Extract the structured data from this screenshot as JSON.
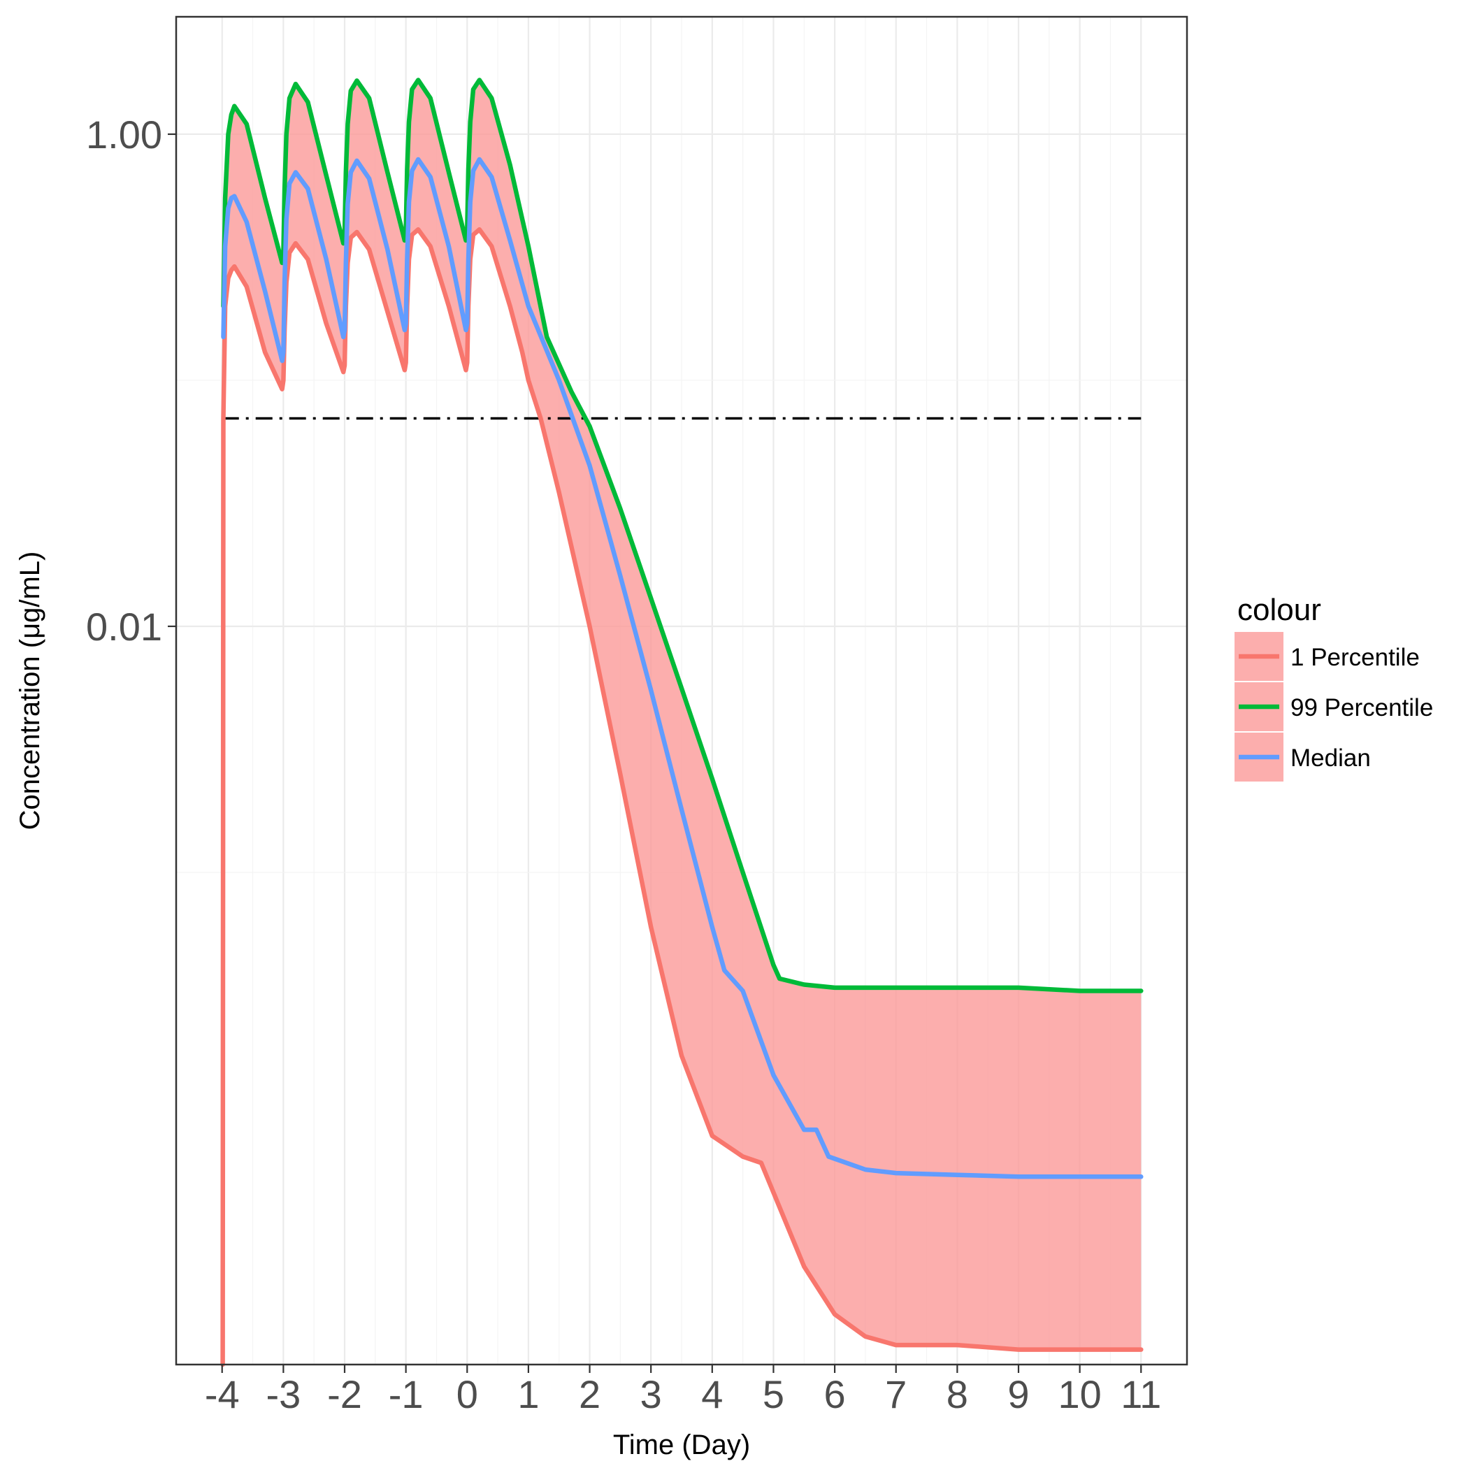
{
  "chart_data": {
    "type": "line",
    "title": "",
    "xlabel": "Time (Day)",
    "ylabel": "Concentration (μg/mL)",
    "x_ticks": [
      -4,
      -3,
      -2,
      -1,
      0,
      1,
      2,
      3,
      4,
      5,
      6,
      7,
      8,
      9,
      10,
      11
    ],
    "x_tick_labels": [
      "-4",
      "-3",
      "-2",
      "-1",
      "0",
      "1",
      "2",
      "3",
      "4",
      "5",
      "6",
      "7",
      "8",
      "9",
      "10",
      "11"
    ],
    "xlim": [
      -4.75,
      11.75
    ],
    "y_scale": "log10",
    "y_ticks": [
      1.0,
      0.01
    ],
    "y_tick_labels": [
      "1.00",
      "0.01"
    ],
    "ylim": [
      1e-05,
      3.0
    ],
    "grid": true,
    "legend": {
      "title": "colour",
      "position": "right",
      "entries": [
        "1 Percentile",
        "99 Percentile",
        "Median"
      ]
    },
    "reference_line": {
      "y": 0.07,
      "style": "dash-dot",
      "x_from": -4,
      "x_to": 11
    },
    "ribbon": {
      "fill": "#fb9a99",
      "opacity": 0.8,
      "between": [
        "1 Percentile",
        "99 Percentile"
      ]
    },
    "series": [
      {
        "name": "1 Percentile",
        "color": "#f8766d",
        "x": [
          -3.99,
          -3.98,
          -3.95,
          -3.9,
          -3.85,
          -3.8,
          -3.6,
          -3.3,
          -3.02,
          -3.0,
          -2.98,
          -2.95,
          -2.9,
          -2.8,
          -2.6,
          -2.3,
          -2.02,
          -2.0,
          -1.98,
          -1.95,
          -1.9,
          -1.8,
          -1.6,
          -1.3,
          -1.02,
          -1.0,
          -0.98,
          -0.95,
          -0.9,
          -0.8,
          -0.6,
          -0.3,
          -0.02,
          0.0,
          0.02,
          0.05,
          0.1,
          0.2,
          0.4,
          0.7,
          0.9,
          1.0,
          1.2,
          1.5,
          2.0,
          2.5,
          3.0,
          3.5,
          4.0,
          4.5,
          4.8,
          5.0,
          5.5,
          6.0,
          6.5,
          7.0,
          8.0,
          9.0,
          10.0,
          11.0
        ],
        "values": [
          1e-05,
          0.07,
          0.2,
          0.26,
          0.28,
          0.29,
          0.24,
          0.13,
          0.092,
          0.1,
          0.16,
          0.25,
          0.33,
          0.36,
          0.31,
          0.17,
          0.108,
          0.115,
          0.2,
          0.3,
          0.38,
          0.4,
          0.34,
          0.19,
          0.11,
          0.118,
          0.2,
          0.31,
          0.39,
          0.41,
          0.35,
          0.2,
          0.11,
          0.118,
          0.2,
          0.31,
          0.39,
          0.41,
          0.35,
          0.2,
          0.13,
          0.1,
          0.07,
          0.035,
          0.01,
          0.0025,
          0.0006,
          0.00018,
          8.5e-05,
          7e-05,
          6.6e-05,
          5e-05,
          2.5e-05,
          1.6e-05,
          1.3e-05,
          1.2e-05,
          1.2e-05,
          1.15e-05,
          1.15e-05,
          1.15e-05
        ]
      },
      {
        "name": "99 Percentile",
        "color": "#00ba38",
        "x": [
          -3.98,
          -3.95,
          -3.9,
          -3.85,
          -3.8,
          -3.6,
          -3.3,
          -3.02,
          -3.0,
          -2.98,
          -2.95,
          -2.9,
          -2.8,
          -2.6,
          -2.3,
          -2.02,
          -2.0,
          -1.98,
          -1.95,
          -1.9,
          -1.8,
          -1.6,
          -1.3,
          -1.02,
          -1.0,
          -0.98,
          -0.95,
          -0.9,
          -0.8,
          -0.6,
          -0.3,
          -0.02,
          0.0,
          0.02,
          0.05,
          0.1,
          0.2,
          0.4,
          0.7,
          1.0,
          1.3,
          1.7,
          2.0,
          2.5,
          3.0,
          3.5,
          4.0,
          4.5,
          5.0,
          5.1,
          5.5,
          6.0,
          7.0,
          8.0,
          9.0,
          10.0,
          11.0
        ],
        "values": [
          0.2,
          0.55,
          1.0,
          1.2,
          1.3,
          1.1,
          0.55,
          0.3,
          0.33,
          0.6,
          1.0,
          1.4,
          1.6,
          1.35,
          0.68,
          0.36,
          0.4,
          0.7,
          1.1,
          1.5,
          1.65,
          1.4,
          0.7,
          0.37,
          0.41,
          0.72,
          1.12,
          1.52,
          1.66,
          1.4,
          0.7,
          0.37,
          0.41,
          0.72,
          1.12,
          1.52,
          1.66,
          1.4,
          0.75,
          0.35,
          0.15,
          0.09,
          0.065,
          0.03,
          0.013,
          0.0056,
          0.0024,
          0.001,
          0.00042,
          0.00037,
          0.00035,
          0.00034,
          0.00034,
          0.00034,
          0.00034,
          0.00033,
          0.00033
        ]
      },
      {
        "name": "Median",
        "color": "#619cff",
        "x": [
          -3.98,
          -3.95,
          -3.9,
          -3.85,
          -3.8,
          -3.6,
          -3.3,
          -3.02,
          -3.0,
          -2.98,
          -2.95,
          -2.9,
          -2.8,
          -2.6,
          -2.3,
          -2.02,
          -2.0,
          -1.98,
          -1.95,
          -1.9,
          -1.8,
          -1.6,
          -1.3,
          -1.02,
          -1.0,
          -0.98,
          -0.95,
          -0.9,
          -0.8,
          -0.6,
          -0.3,
          -0.02,
          0.0,
          0.02,
          0.05,
          0.1,
          0.2,
          0.4,
          0.7,
          1.0,
          1.5,
          2.0,
          2.5,
          3.0,
          3.5,
          4.0,
          4.2,
          4.5,
          5.0,
          5.5,
          5.7,
          5.9,
          6.5,
          7.0,
          8.0,
          9.0,
          10.0,
          11.0
        ],
        "values": [
          0.15,
          0.35,
          0.5,
          0.55,
          0.56,
          0.44,
          0.23,
          0.12,
          0.13,
          0.25,
          0.45,
          0.63,
          0.7,
          0.6,
          0.31,
          0.15,
          0.16,
          0.3,
          0.52,
          0.7,
          0.78,
          0.66,
          0.34,
          0.16,
          0.17,
          0.31,
          0.53,
          0.71,
          0.79,
          0.67,
          0.35,
          0.16,
          0.17,
          0.31,
          0.53,
          0.71,
          0.79,
          0.67,
          0.37,
          0.2,
          0.1,
          0.045,
          0.016,
          0.0055,
          0.0018,
          0.0006,
          0.0004,
          0.00033,
          0.00015,
          9e-05,
          9e-05,
          7e-05,
          6.2e-05,
          6e-05,
          5.9e-05,
          5.8e-05,
          5.8e-05,
          5.8e-05
        ]
      }
    ]
  }
}
